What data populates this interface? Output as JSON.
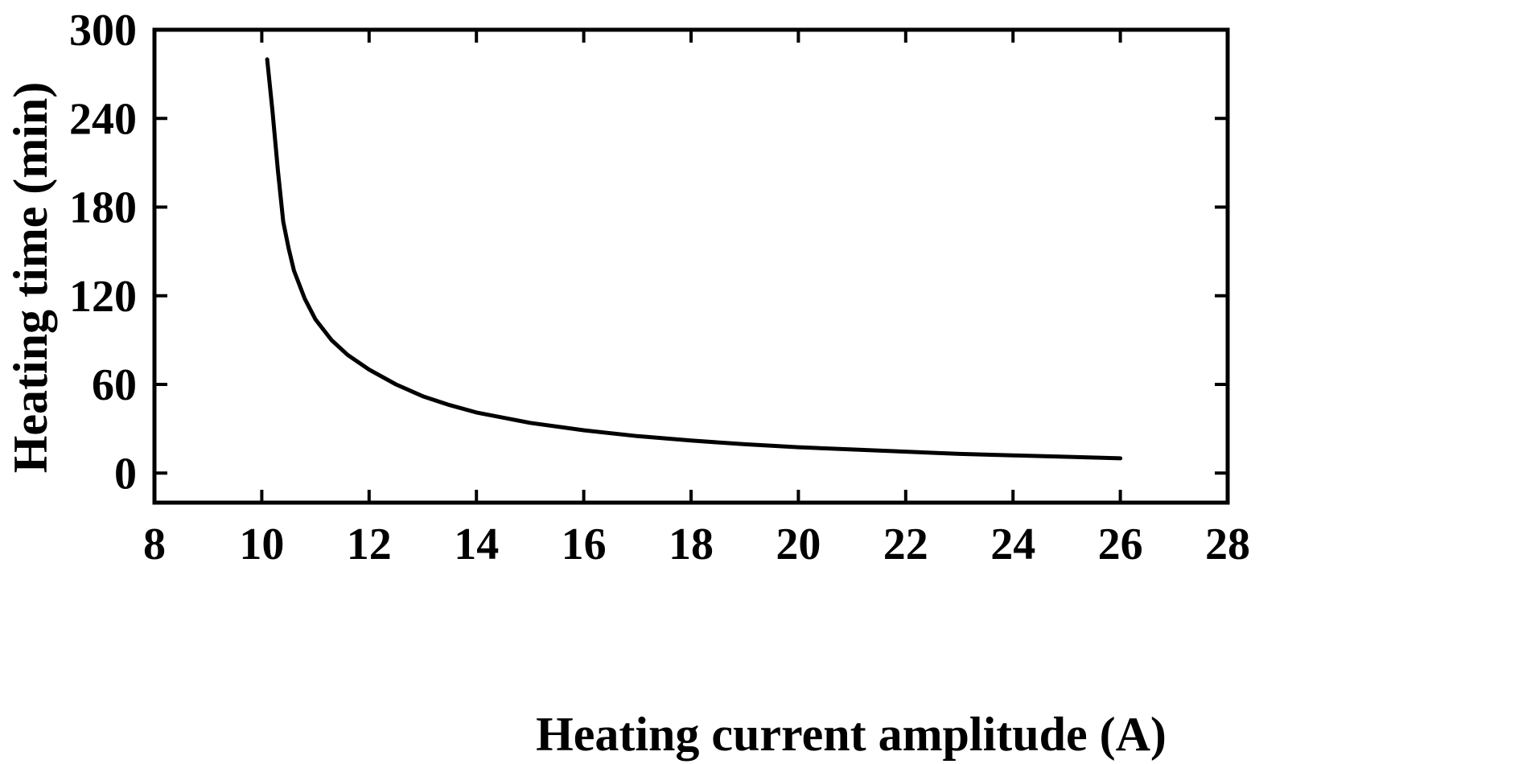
{
  "chart_data": {
    "type": "line",
    "title": "",
    "xlabel": "Heating current amplitude (A)",
    "ylabel": "Heating time (min)",
    "xlim": [
      8,
      28
    ],
    "ylim": [
      -20,
      300
    ],
    "xticks": [
      8,
      10,
      12,
      14,
      16,
      18,
      20,
      22,
      24,
      26,
      28
    ],
    "yticks": [
      0,
      60,
      120,
      180,
      240,
      300
    ],
    "grid": false,
    "legend": "none",
    "colors": {
      "line": "#000000",
      "axis": "#000000"
    },
    "series": [
      {
        "x": [
          10.1,
          10.2,
          10.3,
          10.4,
          10.5,
          10.6,
          10.8,
          11.0,
          11.3,
          11.6,
          12.0,
          12.5,
          13.0,
          13.5,
          14.0,
          15.0,
          16.0,
          17.0,
          18.0,
          19.0,
          20.0,
          21.0,
          22.0,
          23.0,
          24.0,
          25.0,
          26.0
        ],
        "y": [
          280,
          245,
          205,
          170,
          152,
          137,
          118,
          104,
          90,
          80,
          70,
          60,
          52,
          46,
          41,
          34,
          29,
          25,
          22,
          19.5,
          17.5,
          16,
          14.5,
          13,
          12,
          11,
          10
        ]
      }
    ]
  }
}
